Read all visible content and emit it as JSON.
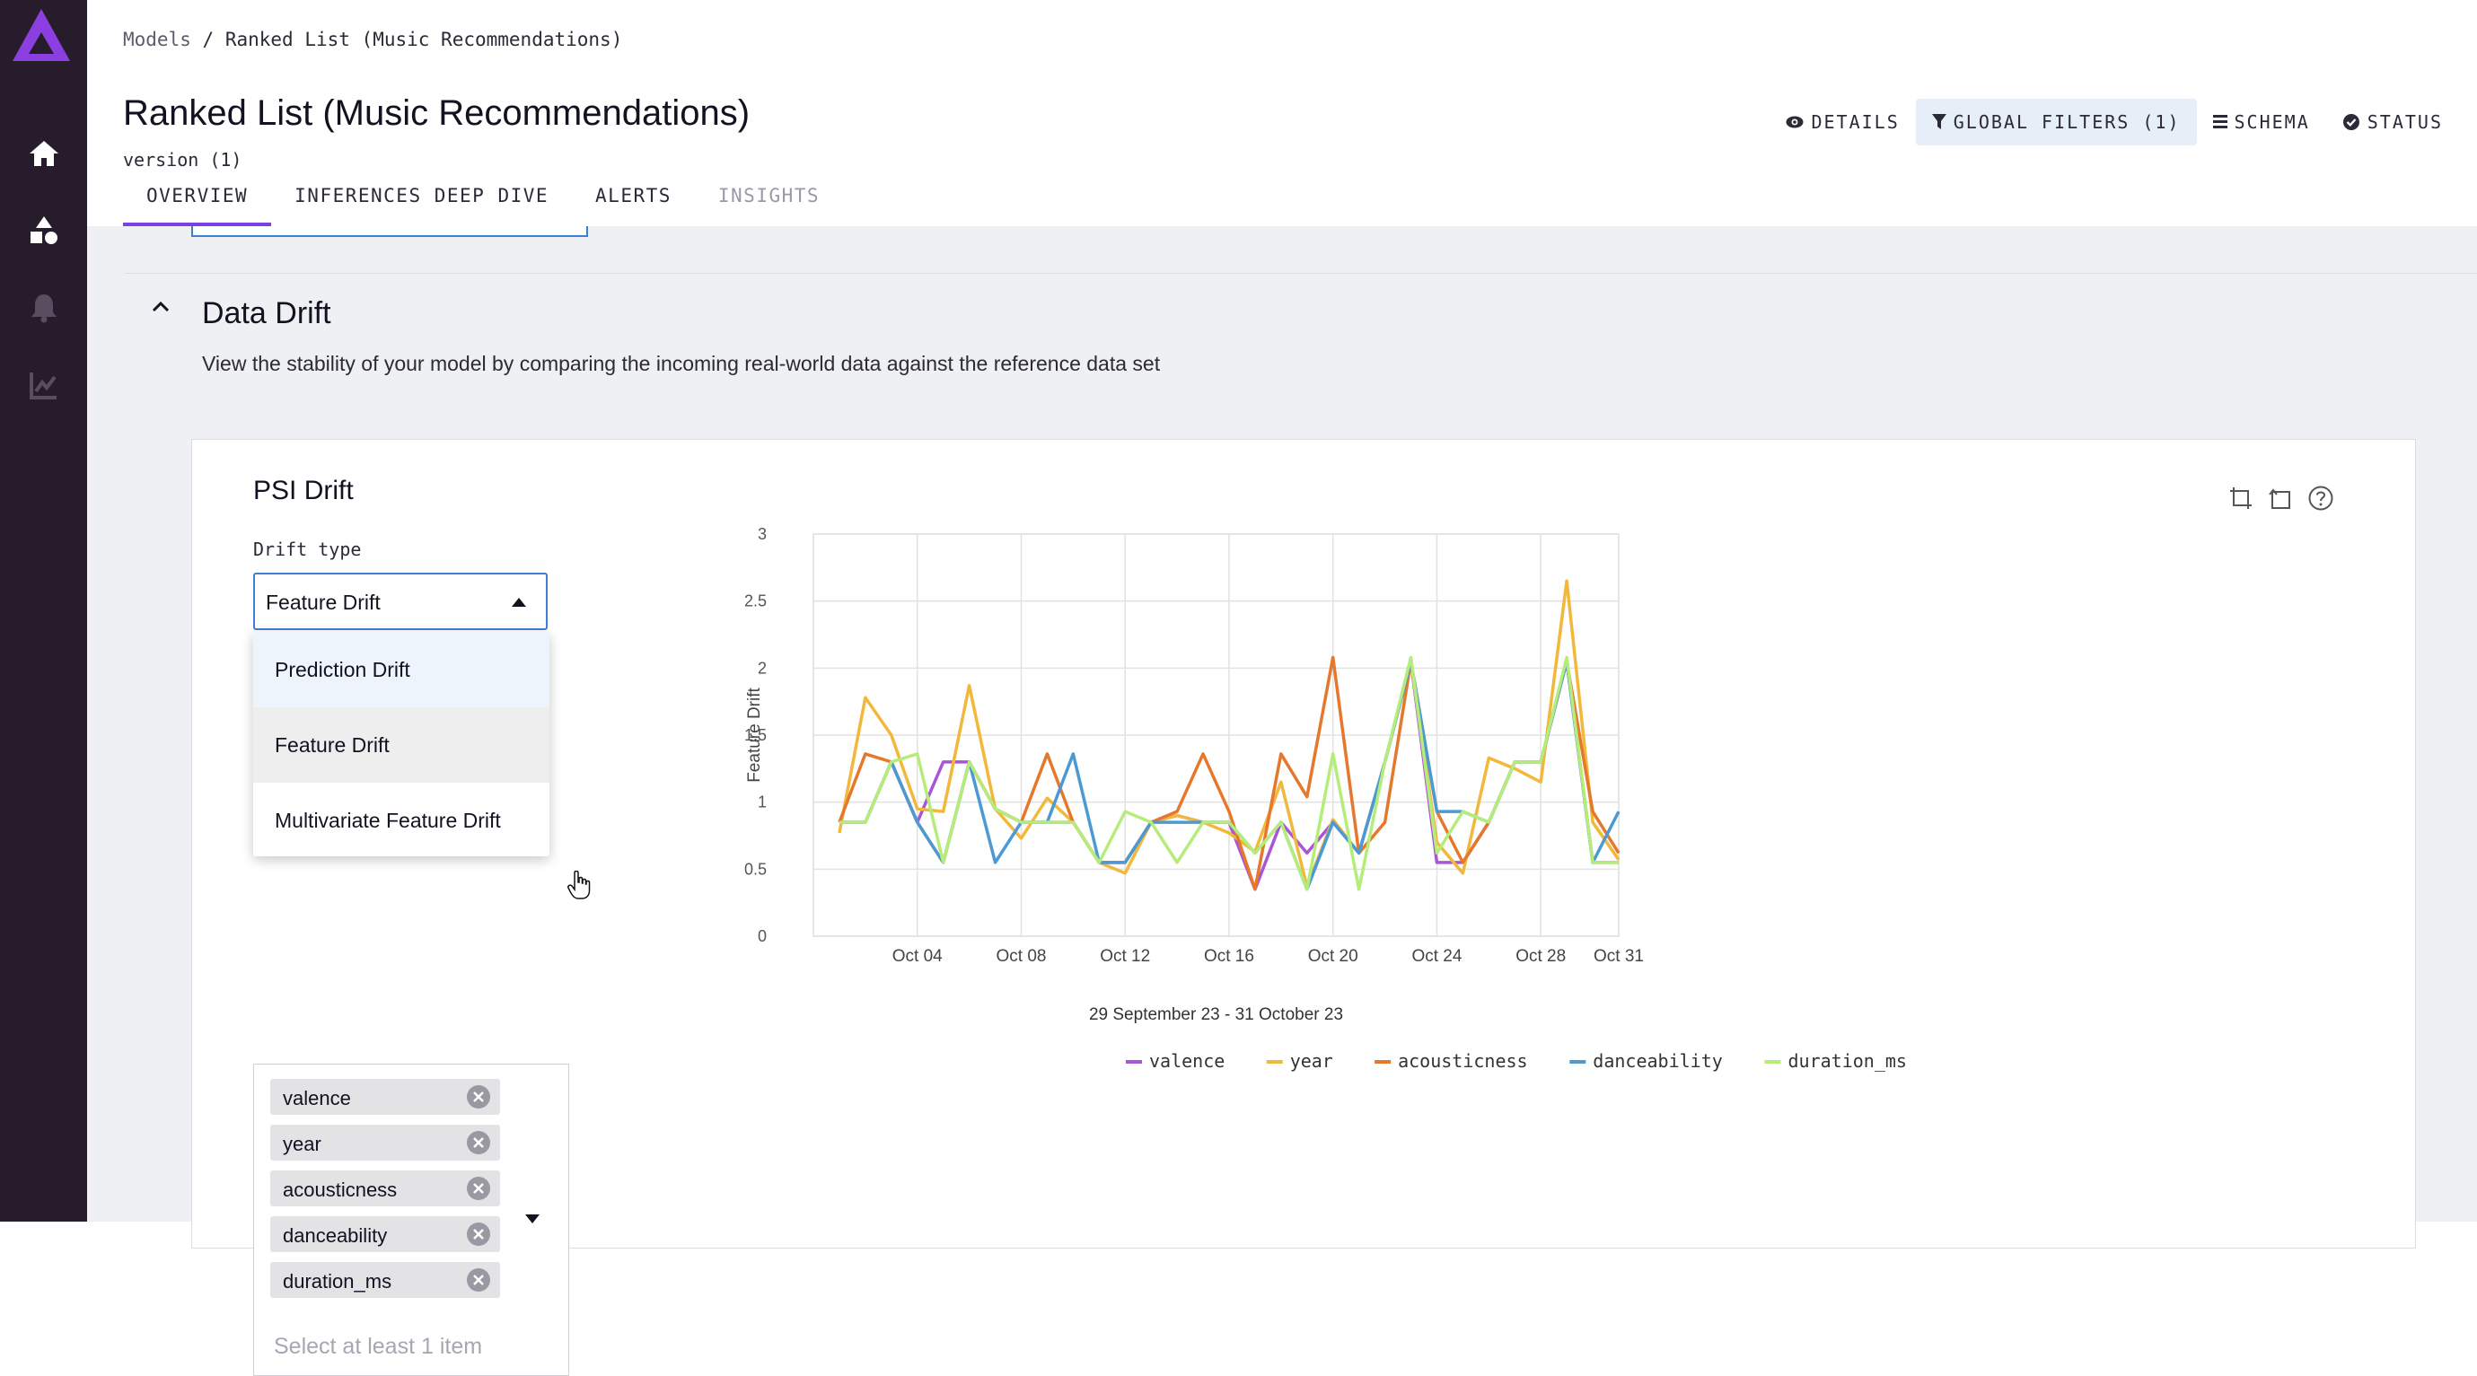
{
  "breadcrumb": {
    "root": "Models",
    "sep": "/",
    "current": "Ranked List (Music Recommendations)"
  },
  "page": {
    "title": "Ranked List (Music Recommendations)",
    "version": "version (1)"
  },
  "tabs": [
    {
      "label": "OVERVIEW",
      "active": true
    },
    {
      "label": "INFERENCES DEEP DIVE"
    },
    {
      "label": "ALERTS"
    },
    {
      "label": "INSIGHTS",
      "disabled": true
    }
  ],
  "header_actions": {
    "details": "DETAILS",
    "global_filters": "GLOBAL FILTERS (1)",
    "schema": "SCHEMA",
    "status": "STATUS"
  },
  "sidebar": {
    "icons": [
      "logo-icon",
      "home-icon",
      "models-icon",
      "alerts-bell-icon",
      "insights-chart-icon"
    ]
  },
  "section": {
    "title": "Data Drift",
    "description": "View the stability of your model by comparing the incoming real-world data against the reference data set"
  },
  "card": {
    "title": "PSI Drift",
    "drift_type_label": "Drift type",
    "drift_type_value": "Feature Drift",
    "options": [
      "Prediction Drift",
      "Feature Drift",
      "Multivariate Feature Drift"
    ],
    "selected_features": [
      "valence",
      "year",
      "acousticness",
      "danceability",
      "duration_ms"
    ],
    "features_placeholder": "Select at least 1 item"
  },
  "colors": {
    "accent": "#7b3fe4",
    "sidebar": "#271c2c",
    "select_border": "#3f7fd3"
  },
  "chart_data": {
    "type": "line",
    "ylabel": "Feature Drift",
    "xlabel": "29 September 23  - 31 October 23",
    "ylim": [
      0,
      3
    ],
    "yticks": [
      0,
      0.5,
      1,
      1.5,
      2,
      2.5,
      3
    ],
    "xtick_labels": [
      "Oct 04",
      "Oct 08",
      "Oct 12",
      "Oct 16",
      "Oct 20",
      "Oct 24",
      "Oct 28",
      "Oct 31"
    ],
    "xtick_days": [
      4,
      8,
      12,
      16,
      20,
      24,
      28,
      31
    ],
    "x_days": [
      1,
      2,
      3,
      4,
      5,
      6,
      7,
      8,
      9,
      10,
      11,
      12,
      13,
      14,
      15,
      16,
      17,
      18,
      19,
      20,
      21,
      22,
      23,
      24,
      25,
      26,
      27,
      28,
      29,
      30,
      31
    ],
    "grid": true,
    "legend_position": "bottom",
    "series": [
      {
        "name": "valence",
        "color": "#a855d6",
        "values": [
          0.85,
          0.85,
          1.3,
          0.85,
          1.3,
          1.3,
          0.95,
          0.85,
          0.85,
          0.85,
          0.55,
          0.55,
          0.85,
          0.9,
          0.85,
          0.85,
          0.35,
          0.85,
          0.62,
          0.85,
          0.62,
          1.3,
          2.05,
          0.55,
          0.55,
          0.85,
          1.3,
          1.3,
          2.05,
          0.55,
          0.55
        ]
      },
      {
        "name": "year",
        "color": "#f2b83c",
        "values": [
          0.77,
          1.78,
          1.5,
          0.95,
          0.93,
          1.87,
          0.95,
          0.73,
          1.03,
          0.85,
          0.55,
          0.47,
          0.85,
          0.9,
          0.85,
          0.77,
          0.63,
          1.15,
          0.37,
          0.87,
          0.62,
          1.3,
          2.05,
          0.7,
          0.47,
          1.33,
          1.25,
          1.15,
          2.65,
          0.85,
          0.57
        ]
      },
      {
        "name": "acousticness",
        "color": "#e6782d",
        "values": [
          0.85,
          1.36,
          1.3,
          0.85,
          0.55,
          1.3,
          0.95,
          0.85,
          1.36,
          0.85,
          0.55,
          0.55,
          0.85,
          0.93,
          1.36,
          0.93,
          0.35,
          1.36,
          1.04,
          2.08,
          0.62,
          0.85,
          2.05,
          0.93,
          0.55,
          0.85,
          1.3,
          1.3,
          2.05,
          0.93,
          0.62
        ]
      },
      {
        "name": "danceability",
        "color": "#4b9ad3",
        "values": [
          0.85,
          0.85,
          1.3,
          0.85,
          0.55,
          1.3,
          0.55,
          0.85,
          0.85,
          1.36,
          0.55,
          0.55,
          0.85,
          0.85,
          0.85,
          0.85,
          0.62,
          0.85,
          0.35,
          0.85,
          0.62,
          1.3,
          2.05,
          0.93,
          0.93,
          0.85,
          1.3,
          1.3,
          2.05,
          0.55,
          0.93
        ]
      },
      {
        "name": "duration_ms",
        "color": "#b5ec7a",
        "values": [
          0.85,
          0.85,
          1.3,
          1.36,
          0.55,
          1.3,
          0.95,
          0.85,
          0.85,
          0.85,
          0.55,
          0.93,
          0.85,
          0.55,
          0.85,
          0.85,
          0.62,
          0.85,
          0.35,
          1.36,
          0.35,
          1.3,
          2.08,
          0.62,
          0.93,
          0.85,
          1.3,
          1.3,
          2.08,
          0.55,
          0.55
        ]
      }
    ]
  }
}
